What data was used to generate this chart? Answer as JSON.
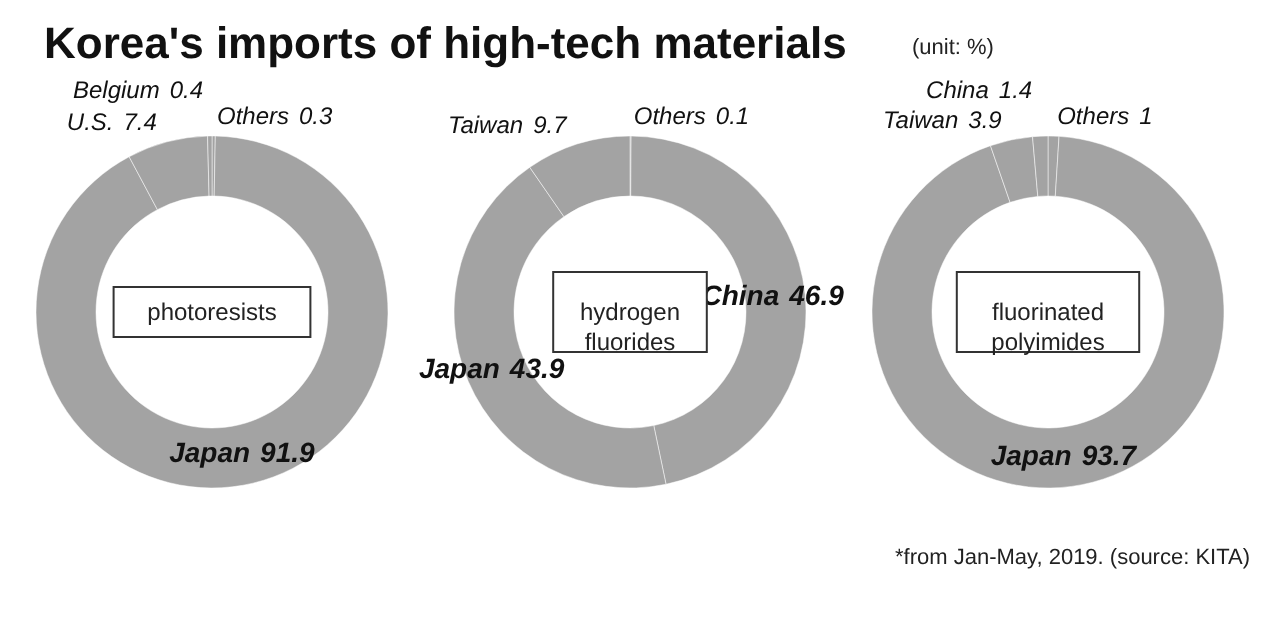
{
  "chart_data": [
    {
      "type": "other",
      "title": "Korea's imports of high-tech materials",
      "annotations": [
        "(unit: %)"
      ]
    },
    {
      "type": "donut",
      "title": "photoresists",
      "categories": [
        "Others",
        "Japan",
        "U.S.",
        "Belgium"
      ],
      "values": [
        0.3,
        91.9,
        7.4,
        0.4
      ],
      "colors": [
        "#a3a3a3",
        "#a3a3a3",
        "#a3a3a3",
        "#a3a3a3"
      ],
      "data_labels": true
    },
    {
      "type": "donut",
      "title": "hydrogen fluorides",
      "categories": [
        "Others",
        "China",
        "Japan",
        "Taiwan"
      ],
      "values": [
        0.1,
        46.9,
        43.9,
        9.7
      ],
      "colors": [
        "#a3a3a3",
        "#a3a3a3",
        "#a3a3a3",
        "#a3a3a3"
      ],
      "data_labels": true
    },
    {
      "type": "donut",
      "title": "fluorinated polyimides",
      "categories": [
        "Others",
        "Japan",
        "Taiwan",
        "China"
      ],
      "values": [
        1,
        93.7,
        3.9,
        1.4
      ],
      "colors": [
        "#a3a3a3",
        "#a3a3a3",
        "#a3a3a3",
        "#a3a3a3"
      ],
      "data_labels": true,
      "annotations": [
        "*from Jan-May, 2019. (source: KITA)"
      ]
    }
  ]
}
